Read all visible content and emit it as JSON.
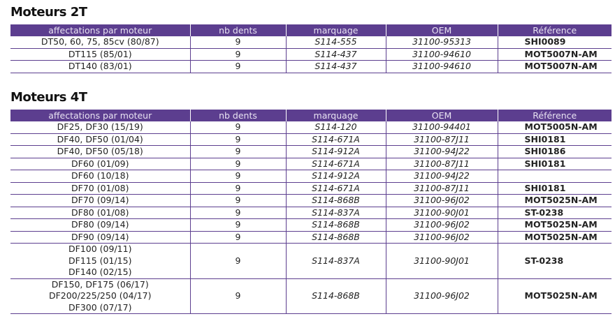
{
  "sections": [
    {
      "title": "Moteurs 2T",
      "header": [
        "affectations par moteur",
        "nb dents",
        "marquage",
        "OEM",
        "Référence"
      ],
      "rows": [
        [
          "DT50, 60, 75, 85cv (80/87)",
          "9",
          "S114-555",
          "31100-95313",
          "SHI0089"
        ],
        [
          "DT115 (85/01)",
          "9",
          "S114-437",
          "31100-94610",
          "MOT5007N-AM"
        ],
        [
          "DT140 (83/01)",
          "9",
          "S114-437",
          "31100-94610",
          "MOT5007N-AM"
        ]
      ]
    },
    {
      "title": "Moteurs 4T",
      "header": [
        "affectations par moteur",
        "nb dents",
        "marquage",
        "OEM",
        "Référence"
      ],
      "rows": [
        [
          "DF25, DF30 (15/19)",
          "9",
          "S114-120",
          "31100-94401",
          "MOT5005N-AM"
        ],
        [
          "DF40, DF50 (01/04)",
          "9",
          "S114-671A",
          "31100-87J11",
          "SHI0181"
        ],
        [
          "DF40, DF50 (05/18)",
          "9",
          "S114-912A",
          "31100-94J22",
          "SHI0186"
        ],
        [
          "DF60 (01/09)",
          "9",
          "S114-671A",
          "31100-87J11",
          "SHI0181"
        ],
        [
          "DF60 (10/18)",
          "9",
          "S114-912A",
          "31100-94J22",
          null
        ],
        [
          "DF70 (01/08)",
          "9",
          "S114-671A",
          "31100-87J11",
          "SHI0181"
        ],
        [
          "DF70 (09/14)",
          "9",
          "S114-868B",
          "31100-96J02",
          "MOT5025N-AM"
        ],
        [
          "DF80 (01/08)",
          "9",
          "S114-837A",
          "31100-90J01",
          "ST-0238"
        ],
        [
          "DF80 (09/14)",
          "9",
          "S114-868B",
          "31100-96J02",
          "MOT5025N-AM"
        ],
        [
          "DF90 (09/14)",
          "9",
          "S114-868B",
          "31100-96J02",
          "MOT5025N-AM"
        ],
        [
          [
            "DF100 (09/11)",
            "DF115 (01/15)",
            "DF140 (02/15)"
          ],
          "9",
          "S114-837A",
          "31100-90J01",
          "ST-0238"
        ],
        [
          [
            "DF150, DF175 (06/17)",
            "DF200/225/250 (04/17)",
            "DF300 (07/17)"
          ],
          "9",
          "S114-868B",
          "31100-96J02",
          "MOT5025N-AM"
        ]
      ]
    }
  ]
}
